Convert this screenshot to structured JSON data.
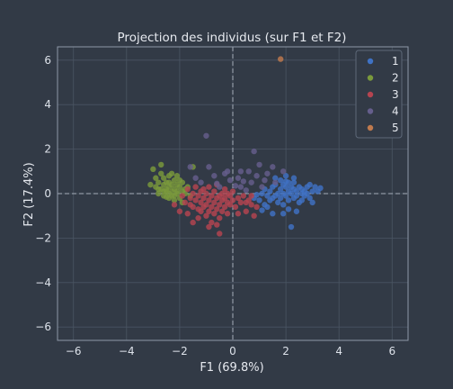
{
  "chart_data": {
    "type": "scatter",
    "title": "Projection des individus (sur F1 et F2)",
    "xlabel": "F1 (69.8%)",
    "ylabel": "F2 (17.4%)",
    "xlim": [
      -6.6,
      6.6
    ],
    "ylim": [
      -6.6,
      6.6
    ],
    "xticks": [
      -6,
      -4,
      -2,
      0,
      2,
      4,
      6
    ],
    "yticks": [
      -6,
      -4,
      -2,
      0,
      2,
      4,
      6
    ],
    "grid": true,
    "reference_lines": {
      "x": 0,
      "y": 0,
      "style": "dashed"
    },
    "legend_position": "top-right",
    "series": [
      {
        "name": "1",
        "color": "#3f72c4",
        "points": [
          [
            1.0,
            -0.3
          ],
          [
            1.1,
            0.0
          ],
          [
            1.2,
            -0.5
          ],
          [
            1.2,
            0.2
          ],
          [
            1.3,
            -0.1
          ],
          [
            1.3,
            -0.6
          ],
          [
            1.4,
            0.1
          ],
          [
            1.4,
            -0.3
          ],
          [
            1.5,
            -0.2
          ],
          [
            1.5,
            0.3
          ],
          [
            1.6,
            -0.1
          ],
          [
            1.6,
            0.4
          ],
          [
            1.7,
            -0.4
          ],
          [
            1.7,
            0.0
          ],
          [
            1.8,
            0.2
          ],
          [
            1.8,
            -0.2
          ],
          [
            1.8,
            0.6
          ],
          [
            1.9,
            -0.5
          ],
          [
            1.9,
            0.0
          ],
          [
            1.9,
            0.4
          ],
          [
            2.0,
            -0.1
          ],
          [
            2.0,
            0.3
          ],
          [
            2.0,
            0.8
          ],
          [
            2.1,
            -0.3
          ],
          [
            2.1,
            0.1
          ],
          [
            2.1,
            0.5
          ],
          [
            2.1,
            -0.7
          ],
          [
            2.2,
            0.0
          ],
          [
            2.2,
            0.3
          ],
          [
            2.2,
            -1.5
          ],
          [
            2.3,
            -0.2
          ],
          [
            2.3,
            0.2
          ],
          [
            2.3,
            0.5
          ],
          [
            2.4,
            -0.1
          ],
          [
            2.4,
            0.1
          ],
          [
            2.4,
            -0.8
          ],
          [
            2.5,
            0.3
          ],
          [
            2.5,
            -0.4
          ],
          [
            2.6,
            0.0
          ],
          [
            2.6,
            0.2
          ],
          [
            2.6,
            -0.3
          ],
          [
            2.7,
            0.1
          ],
          [
            2.7,
            -0.1
          ],
          [
            2.8,
            0.3
          ],
          [
            2.8,
            0.0
          ],
          [
            2.9,
            0.4
          ],
          [
            2.9,
            -0.2
          ],
          [
            3.0,
            0.1
          ],
          [
            3.0,
            -0.4
          ],
          [
            3.1,
            0.3
          ],
          [
            3.2,
            0.1
          ],
          [
            3.3,
            0.25
          ],
          [
            1.5,
            -0.9
          ],
          [
            1.6,
            0.7
          ],
          [
            0.9,
            -0.05
          ],
          [
            0.8,
            -0.2
          ],
          [
            1.1,
            -0.75
          ],
          [
            2.3,
            0.7
          ],
          [
            1.9,
            -0.9
          ],
          [
            2.0,
            0.55
          ]
        ]
      },
      {
        "name": "2",
        "color": "#7a9a3c",
        "points": [
          [
            -3.0,
            1.1
          ],
          [
            -2.9,
            0.3
          ],
          [
            -2.9,
            0.7
          ],
          [
            -2.8,
            0.0
          ],
          [
            -2.8,
            0.5
          ],
          [
            -2.7,
            0.2
          ],
          [
            -2.7,
            0.9
          ],
          [
            -2.7,
            1.3
          ],
          [
            -2.6,
            0.4
          ],
          [
            -2.6,
            -0.1
          ],
          [
            -2.6,
            0.7
          ],
          [
            -2.5,
            0.1
          ],
          [
            -2.5,
            0.5
          ],
          [
            -2.5,
            0.2
          ],
          [
            -2.4,
            0.3
          ],
          [
            -2.4,
            -0.2
          ],
          [
            -2.4,
            0.8
          ],
          [
            -2.4,
            0.0
          ],
          [
            -2.3,
            0.4
          ],
          [
            -2.3,
            0.1
          ],
          [
            -2.3,
            0.9
          ],
          [
            -2.3,
            -0.1
          ],
          [
            -2.2,
            0.2
          ],
          [
            -2.2,
            0.6
          ],
          [
            -2.2,
            -0.3
          ],
          [
            -2.1,
            0.1
          ],
          [
            -2.1,
            0.4
          ],
          [
            -2.1,
            0.0
          ],
          [
            -2.0,
            0.3
          ],
          [
            -2.0,
            -0.2
          ],
          [
            -2.0,
            0.6
          ],
          [
            -1.9,
            0.1
          ],
          [
            -1.9,
            -0.4
          ],
          [
            -1.8,
            0.2
          ],
          [
            -1.8,
            0.0
          ],
          [
            -1.7,
            0.3
          ],
          [
            -1.6,
            -0.1
          ],
          [
            -1.5,
            1.2
          ],
          [
            -2.8,
            0.2
          ],
          [
            -2.5,
            -0.15
          ],
          [
            -3.1,
            0.4
          ],
          [
            -2.1,
            0.8
          ],
          [
            -1.9,
            0.5
          ],
          [
            -2.6,
            0.1
          ],
          [
            -2.2,
            -0.1
          ],
          [
            -2.4,
            0.5
          ]
        ]
      },
      {
        "name": "3",
        "color": "#b54450",
        "points": [
          [
            -2.0,
            -0.8
          ],
          [
            -1.8,
            -0.4
          ],
          [
            -1.7,
            0.2
          ],
          [
            -1.7,
            -0.9
          ],
          [
            -1.6,
            -0.2
          ],
          [
            -1.6,
            -0.5
          ],
          [
            -1.5,
            0.0
          ],
          [
            -1.5,
            -0.6
          ],
          [
            -1.4,
            -0.3
          ],
          [
            -1.4,
            0.3
          ],
          [
            -1.3,
            -0.1
          ],
          [
            -1.3,
            -0.7
          ],
          [
            -1.3,
            -1.1
          ],
          [
            -1.2,
            0.1
          ],
          [
            -1.2,
            -0.4
          ],
          [
            -1.2,
            -0.8
          ],
          [
            -1.1,
            -0.2
          ],
          [
            -1.1,
            0.2
          ],
          [
            -1.1,
            -0.6
          ],
          [
            -1.0,
            0.0
          ],
          [
            -1.0,
            -0.5
          ],
          [
            -1.0,
            -1.0
          ],
          [
            -0.9,
            -0.3
          ],
          [
            -0.9,
            0.3
          ],
          [
            -0.9,
            -0.8
          ],
          [
            -0.8,
            -0.1
          ],
          [
            -0.8,
            -0.6
          ],
          [
            -0.8,
            -1.3
          ],
          [
            -0.7,
            0.1
          ],
          [
            -0.7,
            -0.4
          ],
          [
            -0.7,
            -0.9
          ],
          [
            -0.6,
            -0.2
          ],
          [
            -0.6,
            -0.7
          ],
          [
            -0.6,
            0.4
          ],
          [
            -0.5,
            -0.1
          ],
          [
            -0.5,
            -0.5
          ],
          [
            -0.5,
            -1.1
          ],
          [
            -0.5,
            -1.8
          ],
          [
            -0.4,
            0.0
          ],
          [
            -0.4,
            -0.3
          ],
          [
            -0.4,
            -0.8
          ],
          [
            -0.3,
            -0.2
          ],
          [
            -0.3,
            0.2
          ],
          [
            -0.3,
            -0.6
          ],
          [
            -0.2,
            -0.4
          ],
          [
            -0.2,
            0.0
          ],
          [
            -0.2,
            -0.9
          ],
          [
            -0.1,
            -0.1
          ],
          [
            -0.1,
            -0.5
          ],
          [
            0.0,
            0.1
          ],
          [
            0.0,
            -0.3
          ],
          [
            0.1,
            -0.6
          ],
          [
            0.2,
            -0.2
          ],
          [
            0.3,
            -0.4
          ],
          [
            0.4,
            -0.1
          ],
          [
            0.5,
            -0.8
          ],
          [
            0.6,
            -0.3
          ],
          [
            0.7,
            -0.5
          ],
          [
            0.8,
            -1.0
          ],
          [
            0.9,
            -0.6
          ],
          [
            0.5,
            -0.4
          ],
          [
            0.2,
            -0.9
          ],
          [
            -1.9,
            -0.1
          ],
          [
            -2.2,
            -0.5
          ],
          [
            -1.5,
            -1.3
          ],
          [
            -0.9,
            -1.5
          ],
          [
            -0.6,
            -1.4
          ],
          [
            0.7,
            -0.1
          ]
        ]
      },
      {
        "name": "4",
        "color": "#655e8c",
        "points": [
          [
            -1.0,
            2.6
          ],
          [
            -1.6,
            1.2
          ],
          [
            -1.4,
            0.7
          ],
          [
            -1.2,
            0.5
          ],
          [
            -0.9,
            1.2
          ],
          [
            -0.7,
            0.8
          ],
          [
            -0.5,
            0.3
          ],
          [
            -0.3,
            0.9
          ],
          [
            -0.2,
            1.0
          ],
          [
            -0.1,
            0.6
          ],
          [
            0.1,
            0.35
          ],
          [
            0.2,
            0.7
          ],
          [
            0.3,
            0.3
          ],
          [
            0.5,
            0.15
          ],
          [
            0.6,
            1.0
          ],
          [
            0.7,
            0.5
          ],
          [
            0.8,
            1.9
          ],
          [
            0.9,
            0.8
          ],
          [
            1.0,
            1.3
          ],
          [
            1.2,
            0.6
          ],
          [
            1.5,
            1.2
          ],
          [
            1.6,
            0.5
          ],
          [
            1.9,
            1.0
          ],
          [
            0.3,
            1.0
          ],
          [
            -0.6,
            0.45
          ],
          [
            1.1,
            0.3
          ],
          [
            0.4,
            0.55
          ],
          [
            1.3,
            0.9
          ]
        ]
      },
      {
        "name": "5",
        "color": "#c07a4e",
        "points": [
          [
            1.8,
            6.05
          ]
        ]
      }
    ]
  }
}
